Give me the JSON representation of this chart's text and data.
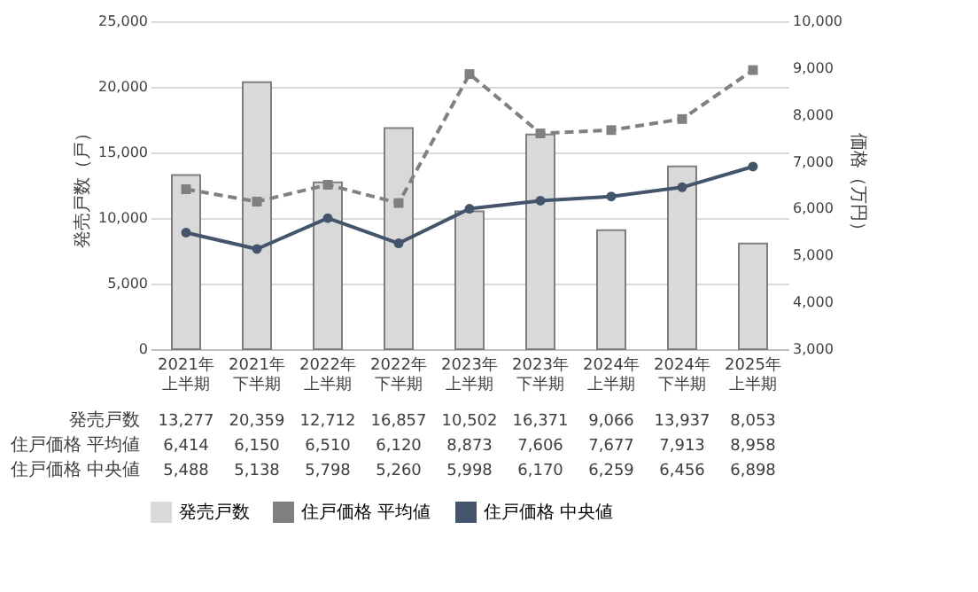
{
  "chart_data": {
    "type": "bar",
    "categories": [
      "2021年上半期",
      "2021年下半期",
      "2022年上半期",
      "2022年下半期",
      "2023年上半期",
      "2023年下半期",
      "2024年上半期",
      "2024年下半期",
      "2025年上半期"
    ],
    "ylabel": "発売戸数（戸）",
    "y2label": "価格（万円）",
    "ylim": [
      0,
      25000
    ],
    "yticks": [
      {
        "value": 0,
        "label": "0"
      },
      {
        "value": 5000,
        "label": "5,000"
      },
      {
        "value": 10000,
        "label": "10,000"
      },
      {
        "value": 15000,
        "label": "15,000"
      },
      {
        "value": 20000,
        "label": "20,000"
      },
      {
        "value": 25000,
        "label": "25,000"
      }
    ],
    "y2lim": [
      3000,
      10000
    ],
    "y2ticks": [
      {
        "value": 3000,
        "label": "3,000"
      },
      {
        "value": 4000,
        "label": "4,000"
      },
      {
        "value": 5000,
        "label": "5,000"
      },
      {
        "value": 6000,
        "label": "6,000"
      },
      {
        "value": 7000,
        "label": "7,000"
      },
      {
        "value": 8000,
        "label": "8,000"
      },
      {
        "value": 9000,
        "label": "9,000"
      },
      {
        "value": 10000,
        "label": "10,000"
      }
    ],
    "grid": "y",
    "legend": "bottom",
    "series": [
      {
        "name": "発売戸数",
        "color": "#d9d9d9",
        "values": [
          13277,
          20359,
          12712,
          16857,
          10502,
          16371,
          9066,
          13937,
          8053
        ],
        "value_labels": [
          "13,277",
          "20,359",
          "12,712",
          "16,857",
          "10,502",
          "16,371",
          "9,066",
          "13,937",
          "8,053"
        ]
      },
      {
        "name": "住戸価格 平均値",
        "type": "line",
        "axis": "y2",
        "color": "#808080",
        "line_style": "dashed",
        "marker": "square",
        "values": [
          6414,
          6150,
          6510,
          6120,
          8873,
          7606,
          7677,
          7913,
          8958
        ],
        "value_labels": [
          "6,414",
          "6,150",
          "6,510",
          "6,120",
          "8,873",
          "7,606",
          "7,677",
          "7,913",
          "8,958"
        ]
      },
      {
        "name": "住戸価格 中央値",
        "type": "line",
        "axis": "y2",
        "color": "#44546a",
        "line_style": "solid",
        "marker": "circle",
        "values": [
          5488,
          5138,
          5798,
          5260,
          5998,
          6170,
          6259,
          6456,
          6898
        ],
        "value_labels": [
          "5,488",
          "5,138",
          "5,798",
          "5,260",
          "5,998",
          "6,170",
          "6,259",
          "6,456",
          "6,898"
        ]
      }
    ]
  }
}
